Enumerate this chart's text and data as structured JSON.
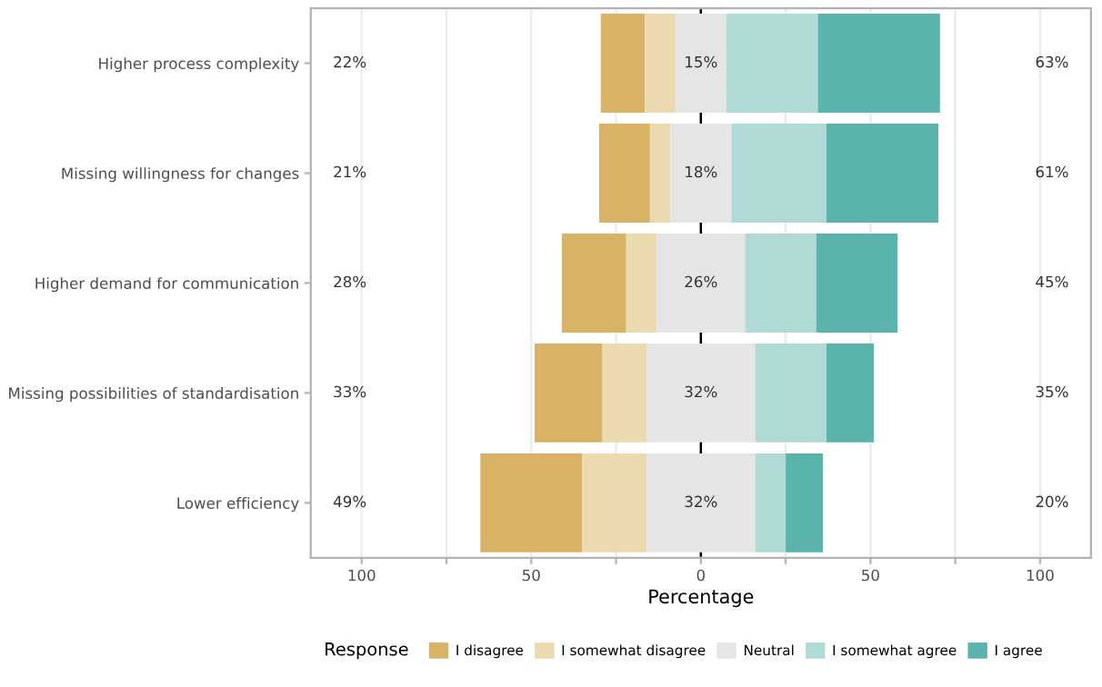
{
  "chart_data": {
    "type": "bar",
    "orientation": "horizontal",
    "xlabel": "Percentage",
    "legend_title": "Response",
    "categories": [
      "Higher process complexity",
      "Missing willingness for changes",
      "Higher demand for communication",
      "Missing possibilities of standardisation",
      "Lower efficiency"
    ],
    "series": [
      {
        "name": "I disagree",
        "color": "#d9b365",
        "values": [
          13,
          15,
          19,
          20,
          30
        ],
        "base": [
          -29.5,
          -30,
          -41,
          -49,
          -65
        ]
      },
      {
        "name": "I somewhat disagree",
        "color": "#ebd9b0",
        "values": [
          9,
          6,
          9,
          13,
          19
        ],
        "base": [
          -16.5,
          -15,
          -22,
          -29,
          -35
        ]
      },
      {
        "name": "Neutral",
        "color": "#e5e5e5",
        "values": [
          15,
          18,
          26,
          32,
          32
        ],
        "base": [
          -7.5,
          -9,
          -13,
          -16,
          -16
        ],
        "value_labels": [
          "15%",
          "18%",
          "26%",
          "32%",
          "32%"
        ]
      },
      {
        "name": "I somewhat agree",
        "color": "#afdad6",
        "values": [
          27,
          28,
          21,
          21,
          9
        ],
        "base": [
          7.5,
          9,
          13,
          16,
          16
        ]
      },
      {
        "name": "I agree",
        "color": "#5ab4ac",
        "values": [
          36,
          33,
          24,
          14,
          11
        ],
        "base": [
          34.5,
          37,
          34,
          37,
          25
        ]
      }
    ],
    "annotations": [
      "22%",
      "21%",
      "28%",
      "33%",
      "49%",
      "63%",
      "61%",
      "45%",
      "35%",
      "20%"
    ],
    "xlim": [
      -115,
      115
    ],
    "xticks": [
      {
        "value": -100,
        "label": "100"
      },
      {
        "value": -75,
        "label": null
      },
      {
        "value": -50,
        "label": "50"
      },
      {
        "value": -25,
        "label": null
      },
      0,
      {
        "value": 25,
        "label": null
      },
      50,
      {
        "value": 75,
        "label": null
      },
      100
    ],
    "ref_lines": [
      {
        "axis": "x",
        "value": 0,
        "color": "#000000",
        "line_style": "solid"
      }
    ],
    "grid": "x",
    "legend": "bottom"
  }
}
